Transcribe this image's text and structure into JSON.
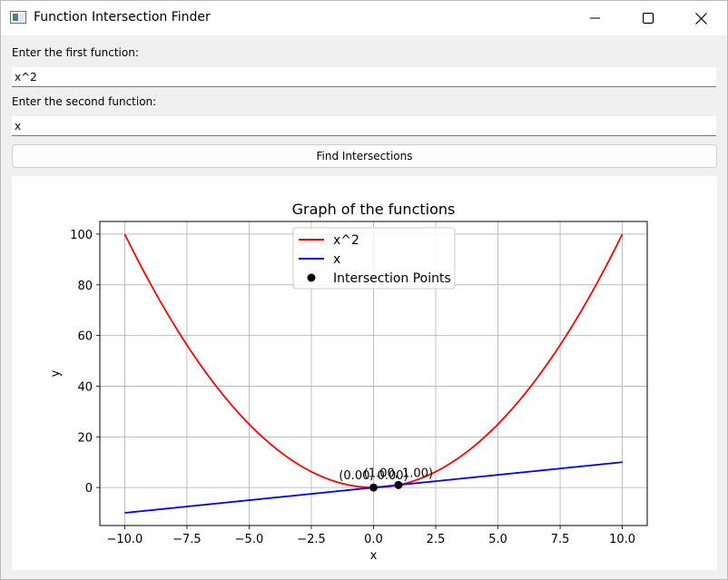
{
  "window": {
    "title": "Function Intersection Finder"
  },
  "form": {
    "first_label": "Enter the first function:",
    "first_value": "x^2",
    "second_label": "Enter the second function:",
    "second_value": "x",
    "find_button_label": "Find Intersections"
  },
  "chart_data": {
    "type": "line",
    "title": "Graph of the functions",
    "xlabel": "x",
    "ylabel": "y",
    "xlim": [
      -11.0,
      11.0
    ],
    "ylim": [
      -15.0,
      105.0
    ],
    "x_ticks": [
      -10.0,
      -7.5,
      -5.0,
      -2.5,
      0.0,
      2.5,
      5.0,
      7.5,
      10.0
    ],
    "x_tick_labels": [
      "−10.0",
      "−7.5",
      "−5.0",
      "−2.5",
      "0.0",
      "2.5",
      "5.0",
      "7.5",
      "10.0"
    ],
    "y_ticks": [
      0,
      20,
      40,
      60,
      80,
      100
    ],
    "y_tick_labels": [
      "0",
      "20",
      "40",
      "60",
      "80",
      "100"
    ],
    "grid": true,
    "legend_position": "top-center",
    "series": [
      {
        "name": "x^2",
        "color": "#ff0000",
        "expr": "x^2",
        "x_range": [
          -10,
          10
        ]
      },
      {
        "name": "x",
        "color": "#0000ff",
        "expr": "x",
        "x_range": [
          -10,
          10
        ]
      }
    ],
    "points": {
      "name": "Intersection Points",
      "color": "#000000",
      "data": [
        {
          "x": 0.0,
          "y": 0.0,
          "label": "(0.00, 0.00)"
        },
        {
          "x": 1.0,
          "y": 1.0,
          "label": "(1.00, 1.00)"
        }
      ]
    }
  }
}
